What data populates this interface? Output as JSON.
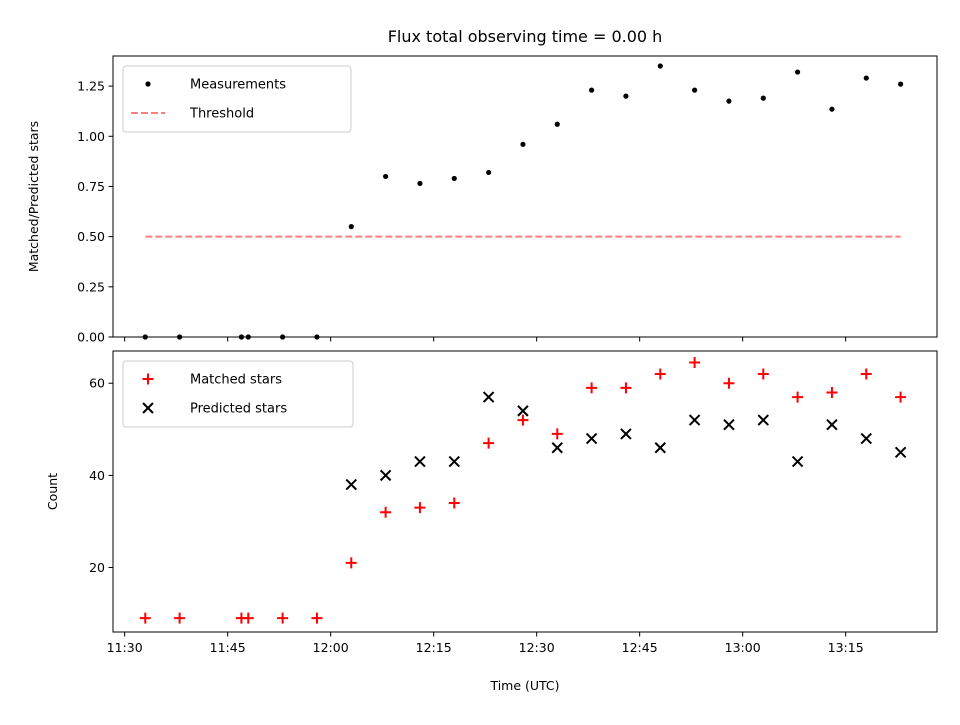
{
  "title": "Flux total observing time = 0.00 h",
  "xlabel": "Time (UTC)",
  "x_ticks": [
    {
      "label": "11:30",
      "t": 690
    },
    {
      "label": "11:45",
      "t": 705
    },
    {
      "label": "12:00",
      "t": 720
    },
    {
      "label": "12:15",
      "t": 735
    },
    {
      "label": "12:30",
      "t": 750
    },
    {
      "label": "12:45",
      "t": 765
    },
    {
      "label": "13:00",
      "t": 780
    },
    {
      "label": "13:15",
      "t": 795
    }
  ],
  "chart_data": [
    {
      "type": "scatter",
      "ylabel": "Matched/Predicted stars",
      "ylim": [
        0,
        1.4
      ],
      "xlim_minutes": [
        688.3,
        808.3
      ],
      "y_ticks": [
        "0.00",
        "0.25",
        "0.50",
        "0.75",
        "1.00",
        "1.25"
      ],
      "y_tick_values": [
        0,
        0.25,
        0.5,
        0.75,
        1.0,
        1.25
      ],
      "grid": false,
      "legend_position": "top-left",
      "series": [
        {
          "name": "Measurements",
          "marker": "dot",
          "color": "#000000",
          "x": [
            "11:33",
            "11:38",
            "11:47",
            "11:48",
            "11:53",
            "11:58",
            "12:03",
            "12:08",
            "12:13",
            "12:18",
            "12:23",
            "12:28",
            "12:33",
            "12:38",
            "12:43",
            "12:48",
            "12:53",
            "12:58",
            "13:03",
            "13:08",
            "13:13",
            "13:18",
            "13:23"
          ],
          "y": [
            0,
            0,
            0,
            0,
            0,
            0,
            0.55,
            0.8,
            0.765,
            0.79,
            0.82,
            0.96,
            1.06,
            1.23,
            1.2,
            1.35,
            1.23,
            1.175,
            1.19,
            1.32,
            1.135,
            1.29,
            1.26
          ]
        },
        {
          "name": "Threshold",
          "marker": "dashed-line",
          "color": "#ff7f7f",
          "x": [
            "11:33",
            "13:23"
          ],
          "y": [
            0.5,
            0.5
          ]
        }
      ]
    },
    {
      "type": "scatter",
      "ylabel": "Count",
      "ylim": [
        6,
        67
      ],
      "xlim_minutes": [
        688.3,
        808.3
      ],
      "y_ticks": [
        "20",
        "40",
        "60"
      ],
      "y_tick_values": [
        20,
        40,
        60
      ],
      "grid": false,
      "legend_position": "top-left",
      "series": [
        {
          "name": "Matched stars",
          "marker": "plus",
          "color": "#ff0000",
          "x": [
            "11:33",
            "11:38",
            "11:47",
            "11:48",
            "11:53",
            "11:58",
            "12:03",
            "12:08",
            "12:13",
            "12:18",
            "12:23",
            "12:28",
            "12:33",
            "12:38",
            "12:43",
            "12:48",
            "12:53",
            "12:58",
            "13:03",
            "13:08",
            "13:13",
            "13:18",
            "13:23"
          ],
          "y": [
            9,
            9,
            9,
            9,
            9,
            9,
            21,
            32,
            33,
            34,
            47,
            52,
            49,
            59,
            59,
            62,
            64.5,
            60,
            62,
            57,
            58,
            62,
            57
          ]
        },
        {
          "name": "Predicted stars",
          "marker": "x",
          "color": "#000000",
          "x": [
            "12:03",
            "12:08",
            "12:13",
            "12:18",
            "12:23",
            "12:28",
            "12:33",
            "12:38",
            "12:43",
            "12:48",
            "12:53",
            "12:58",
            "13:03",
            "13:08",
            "13:13",
            "13:18",
            "13:23"
          ],
          "y": [
            38,
            40,
            43,
            43,
            57,
            54,
            46,
            48,
            49,
            46,
            52,
            51,
            52,
            43,
            51,
            48,
            45
          ]
        }
      ]
    }
  ]
}
